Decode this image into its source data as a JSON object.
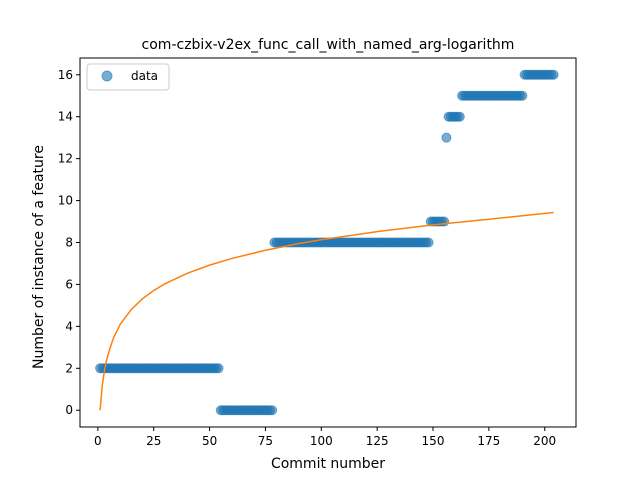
{
  "chart_data": {
    "type": "scatter",
    "title": "com-czbix-v2ex_func_call_with_named_arg-logarithm",
    "xlabel": "Commit number",
    "ylabel": "Number of instance of a feature",
    "xlim": [
      -8,
      214
    ],
    "ylim": [
      -0.8,
      16.8
    ],
    "xticks": [
      0,
      25,
      50,
      75,
      100,
      125,
      150,
      175,
      200
    ],
    "yticks": [
      0,
      2,
      4,
      6,
      8,
      10,
      12,
      14,
      16
    ],
    "grid": false,
    "legend": {
      "position": "top-left",
      "entries": [
        "data"
      ]
    },
    "colors": {
      "data": "#1f77b4",
      "fit": "#ff7f0e"
    },
    "series": [
      {
        "name": "data",
        "kind": "scatter",
        "segments": [
          {
            "x_start": 1,
            "x_end": 54,
            "y": 2
          },
          {
            "x_start": 55,
            "x_end": 78,
            "y": 0
          },
          {
            "x_start": 79,
            "x_end": 148,
            "y": 8
          },
          {
            "x_start": 149,
            "x_end": 155,
            "y": 9
          },
          {
            "x_start": 156,
            "x_end": 156,
            "y": 13
          },
          {
            "x_start": 157,
            "x_end": 162,
            "y": 14
          },
          {
            "x_start": 163,
            "x_end": 190,
            "y": 15
          },
          {
            "x_start": 191,
            "x_end": 204,
            "y": 16
          }
        ]
      },
      {
        "kind": "line",
        "x": [
          1,
          2,
          3,
          4,
          5,
          7,
          10,
          15,
          20,
          25,
          30,
          40,
          50,
          60,
          75,
          90,
          100,
          125,
          150,
          175,
          204
        ],
        "y": [
          0.0,
          1.22,
          1.93,
          2.43,
          2.82,
          3.45,
          4.1,
          4.81,
          5.32,
          5.71,
          6.03,
          6.53,
          6.92,
          7.24,
          7.63,
          7.95,
          8.13,
          8.52,
          8.84,
          9.11,
          9.43
        ]
      }
    ]
  }
}
